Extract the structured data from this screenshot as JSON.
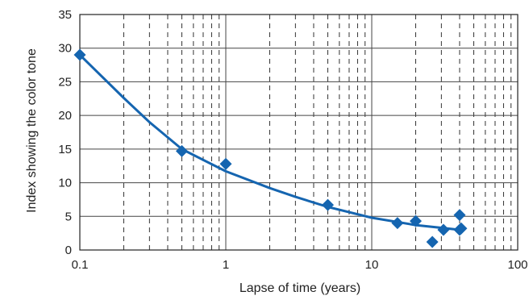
{
  "chart_data": {
    "type": "scatter",
    "title": "",
    "xlabel": "Lapse of time (years)",
    "ylabel": "Index showing the color tone",
    "x_scale": "log",
    "xlim": [
      0.1,
      100
    ],
    "ylim": [
      0,
      35
    ],
    "x_ticks": [
      "0.1",
      "1",
      "10",
      "100"
    ],
    "y_ticks": [
      "0",
      "5",
      "10",
      "15",
      "20",
      "25",
      "30",
      "35"
    ],
    "grid": true,
    "legend": "none",
    "series": [
      {
        "marker": "diamond",
        "color": "#1565b0",
        "points": [
          {
            "x": 0.1,
            "y": 29
          },
          {
            "x": 0.5,
            "y": 14.7
          },
          {
            "x": 1.0,
            "y": 12.8
          },
          {
            "x": 5.0,
            "y": 6.7
          },
          {
            "x": 15,
            "y": 4.0
          },
          {
            "x": 20,
            "y": 4.3
          },
          {
            "x": 26,
            "y": 1.2
          },
          {
            "x": 31,
            "y": 3.0
          },
          {
            "x": 40,
            "y": 5.2
          },
          {
            "x": 40,
            "y": 3.0
          },
          {
            "x": 41,
            "y": 3.2
          }
        ]
      }
    ],
    "trend_line": {
      "color": "#1565b0",
      "points": [
        {
          "x": 0.1,
          "y": 29
        },
        {
          "x": 0.2,
          "y": 22.6
        },
        {
          "x": 0.3,
          "y": 19.0
        },
        {
          "x": 0.5,
          "y": 15.0
        },
        {
          "x": 1,
          "y": 11.7
        },
        {
          "x": 2,
          "y": 9.2
        },
        {
          "x": 3,
          "y": 7.9
        },
        {
          "x": 5,
          "y": 6.4
        },
        {
          "x": 10,
          "y": 4.8
        },
        {
          "x": 20,
          "y": 3.7
        },
        {
          "x": 30,
          "y": 3.3
        },
        {
          "x": 40,
          "y": 3.0
        }
      ]
    }
  }
}
